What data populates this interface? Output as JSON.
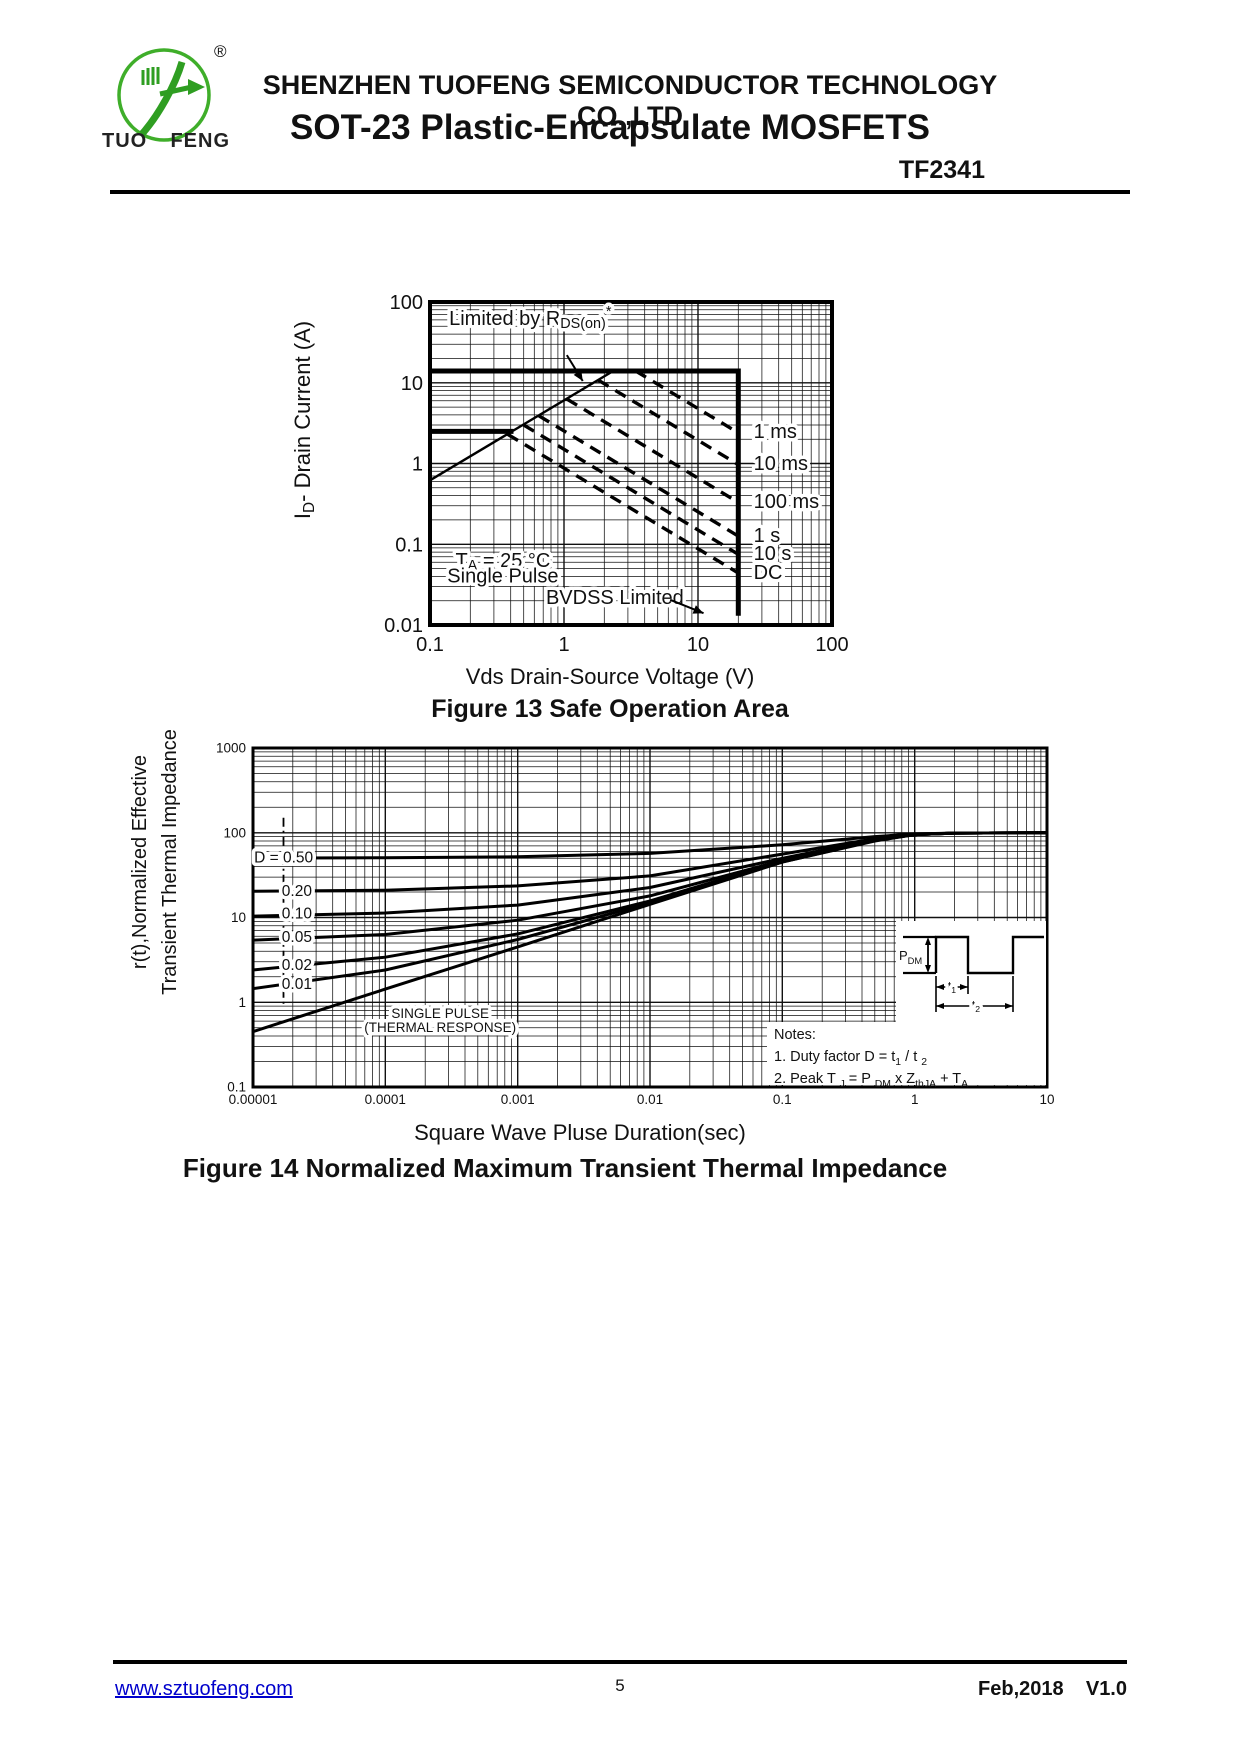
{
  "header": {
    "registered": "®",
    "logo_word1": "TUO",
    "logo_word2": "FENG",
    "company": "SHENZHEN TUOFENG SEMICONDUCTOR TECHNOLOGY CO.,LTD",
    "title": "SOT-23 Plastic-Encapsulate MOSFETS",
    "part_number": "TF2341",
    "logo_green": "#3fae2a"
  },
  "chart_data": [
    {
      "type": "line",
      "title": "Figure 13 Safe Operation Area",
      "xlabel": "Vds Drain-Source Voltage (V)",
      "ylabel": "ID- Drain Current (A)",
      "ylabel_parts": [
        {
          "t": "I"
        },
        {
          "t": "D",
          "sub": true
        },
        {
          "t": "- Drain Current (A)"
        }
      ],
      "xlim": [
        0.1,
        100
      ],
      "ylim": [
        0.01,
        100
      ],
      "grid": true,
      "x_ticks": [
        [
          "0.1",
          0.1
        ],
        [
          "1",
          1
        ],
        [
          "10",
          10
        ],
        [
          "100",
          100
        ]
      ],
      "y_ticks": [
        [
          "100",
          100
        ],
        [
          "10",
          10
        ],
        [
          "1",
          1
        ],
        [
          "0.1",
          0.1
        ],
        [
          "0.01",
          0.01
        ]
      ],
      "series": [
        {
          "name": "max-current-and-bvdss-boundary",
          "style": "thick",
          "points": [
            [
              0.1,
              14
            ],
            [
              20,
              14
            ],
            [
              20,
              0.013
            ]
          ]
        },
        {
          "name": "pulsed-current-limit",
          "style": "thick",
          "points": [
            [
              0.1,
              2.5
            ],
            [
              0.42,
              2.5
            ]
          ]
        },
        {
          "name": "rdson-limit-line",
          "style": "solid",
          "points": [
            [
              0.1,
              0.62
            ],
            [
              2.33,
              14
            ]
          ]
        },
        {
          "name": "soa-1ms",
          "style": "dashed",
          "points": [
            [
              3.43,
              14
            ],
            [
              20,
              2.4
            ]
          ]
        },
        {
          "name": "soa-10ms",
          "style": "dashed",
          "points": [
            [
              1.8,
              10.8
            ],
            [
              20,
              0.97
            ]
          ]
        },
        {
          "name": "soa-100ms",
          "style": "dashed",
          "points": [
            [
              1.05,
              6.3
            ],
            [
              20,
              0.33
            ]
          ]
        },
        {
          "name": "soa-1s",
          "style": "dashed",
          "points": [
            [
              0.65,
              3.9
            ],
            [
              20,
              0.126
            ]
          ]
        },
        {
          "name": "soa-10s",
          "style": "dashed",
          "points": [
            [
              0.5,
              3.0
            ],
            [
              20,
              0.075
            ]
          ]
        },
        {
          "name": "soa-dc",
          "style": "dashed",
          "points": [
            [
              0.38,
              2.3
            ],
            [
              20,
              0.044
            ]
          ]
        }
      ],
      "labels": [
        {
          "name": "label-limited-by-rdson",
          "x": 0.56,
          "y": 60,
          "anchor": "middle",
          "size": 20,
          "knock": true,
          "parts": [
            {
              "t": "Limited by R"
            },
            {
              "t": "DS(on)",
              "sub": true
            },
            {
              "t": "*",
              "sup": true
            }
          ]
        },
        {
          "name": "label-ta-25c",
          "x": 0.35,
          "y": 0.06,
          "anchor": "middle",
          "size": 20,
          "knock": true,
          "parts": [
            {
              "t": "T"
            },
            {
              "t": "A",
              "sub": true
            },
            {
              "t": " = 25 °C"
            }
          ]
        },
        {
          "name": "label-single-pulse",
          "x": 0.35,
          "y": 0.039,
          "anchor": "middle",
          "size": 20,
          "knock": true,
          "parts": [
            {
              "t": "Single Pulse"
            }
          ]
        },
        {
          "name": "label-bvdss-limited",
          "x": 2.4,
          "y": 0.021,
          "anchor": "middle",
          "size": 20,
          "knock": true,
          "parts": [
            {
              "t": "BVDSS Limited"
            }
          ]
        },
        {
          "name": "label-1ms",
          "x": 26,
          "y": 2.4,
          "anchor": "start",
          "size": 20,
          "knock": true,
          "parts": [
            {
              "t": "1 ms"
            }
          ]
        },
        {
          "name": "label-10ms",
          "x": 26,
          "y": 0.96,
          "anchor": "start",
          "size": 20,
          "knock": true,
          "parts": [
            {
              "t": "10 ms"
            }
          ]
        },
        {
          "name": "label-100ms",
          "x": 26,
          "y": 0.324,
          "anchor": "start",
          "size": 20,
          "knock": true,
          "parts": [
            {
              "t": "100 ms"
            }
          ]
        },
        {
          "name": "label-1s",
          "x": 26,
          "y": 0.123,
          "anchor": "start",
          "size": 20,
          "knock": true,
          "parts": [
            {
              "t": "1 s"
            }
          ]
        },
        {
          "name": "label-10s",
          "x": 26,
          "y": 0.074,
          "anchor": "start",
          "size": 20,
          "knock": true,
          "parts": [
            {
              "t": "10 s"
            }
          ]
        },
        {
          "name": "label-dc",
          "x": 26,
          "y": 0.043,
          "anchor": "start",
          "size": 20,
          "knock": true,
          "parts": [
            {
              "t": "DC"
            }
          ]
        }
      ],
      "arrows": [
        {
          "name": "arrow-to-rdson-line",
          "from": [
            1.05,
            22
          ],
          "to": [
            1.38,
            10.5
          ]
        },
        {
          "name": "arrow-to-bvdss-line",
          "from": [
            6.2,
            0.0205
          ],
          "to": [
            11,
            0.014
          ]
        }
      ]
    },
    {
      "type": "line",
      "title": "Figure 14 Normalized Maximum Transient Thermal Impedance",
      "xlabel": "Square Wave Pluse Duration(sec)",
      "ylabel_line1": "r(t),Normalized Effective",
      "ylabel_line2": "Transient Thermal Impedance",
      "xlim": [
        1e-05,
        10
      ],
      "ylim": [
        0.1,
        1000
      ],
      "grid": true,
      "x_ticks": [
        [
          "0.00001",
          1e-05
        ],
        [
          "0.0001",
          0.0001
        ],
        [
          "0.001",
          0.001
        ],
        [
          "0.01",
          0.01
        ],
        [
          "0.1",
          0.1
        ],
        [
          "1",
          1
        ],
        [
          "10",
          10
        ]
      ],
      "y_ticks": [
        [
          "1000",
          1000
        ],
        [
          "100",
          100
        ],
        [
          "10",
          10
        ],
        [
          "1",
          1
        ],
        [
          "0.1",
          0.1
        ]
      ],
      "series": [
        {
          "name": "duty-0-50",
          "style": "curve",
          "points": [
            [
              1e-05,
              50.2
            ],
            [
              0.0001,
              50.7
            ],
            [
              0.001,
              52
            ],
            [
              0.01,
              57
            ],
            [
              0.1,
              72
            ],
            [
              0.5,
              90
            ],
            [
              1,
              97
            ],
            [
              2,
              99
            ],
            [
              10,
              100
            ]
          ]
        },
        {
          "name": "duty-0-20",
          "style": "curve",
          "points": [
            [
              1e-05,
              20.4
            ],
            [
              0.0001,
              21
            ],
            [
              0.001,
              23.6
            ],
            [
              0.01,
              31
            ],
            [
              0.1,
              56
            ],
            [
              0.5,
              85
            ],
            [
              1,
              96
            ],
            [
              2,
              99
            ],
            [
              10,
              100
            ]
          ]
        },
        {
          "name": "duty-0-10",
          "style": "curve",
          "points": [
            [
              1e-05,
              10.4
            ],
            [
              0.0001,
              11.3
            ],
            [
              0.001,
              14
            ],
            [
              0.01,
              22.6
            ],
            [
              0.1,
              50
            ],
            [
              0.5,
              83
            ],
            [
              1,
              95
            ],
            [
              2,
              99
            ],
            [
              10,
              100
            ]
          ]
        },
        {
          "name": "duty-0-05",
          "style": "curve",
          "points": [
            [
              1e-05,
              5.4
            ],
            [
              0.0001,
              6.3
            ],
            [
              0.001,
              9.3
            ],
            [
              0.01,
              18
            ],
            [
              0.1,
              47
            ],
            [
              0.5,
              82
            ],
            [
              1,
              95
            ],
            [
              2,
              99
            ],
            [
              10,
              100
            ]
          ]
        },
        {
          "name": "duty-0-02",
          "style": "curve",
          "points": [
            [
              1e-05,
              2.4
            ],
            [
              0.0001,
              3.4
            ],
            [
              0.001,
              6.4
            ],
            [
              0.01,
              15.7
            ],
            [
              0.1,
              46
            ],
            [
              0.5,
              81
            ],
            [
              1,
              95
            ],
            [
              2,
              99
            ],
            [
              10,
              100
            ]
          ]
        },
        {
          "name": "duty-0-01",
          "style": "curve",
          "points": [
            [
              1e-05,
              1.45
            ],
            [
              0.0001,
              2.4
            ],
            [
              0.001,
              5.5
            ],
            [
              0.01,
              14.9
            ],
            [
              0.1,
              45
            ],
            [
              0.5,
              81
            ],
            [
              1,
              95
            ],
            [
              2,
              99
            ],
            [
              10,
              100
            ]
          ]
        },
        {
          "name": "single-pulse-thermal-response",
          "style": "curve",
          "points": [
            [
              1e-05,
              0.45
            ],
            [
              0.0001,
              1.43
            ],
            [
              0.001,
              4.5
            ],
            [
              0.01,
              14.3
            ],
            [
              0.1,
              45
            ],
            [
              0.5,
              80
            ],
            [
              1,
              95
            ],
            [
              2,
              99
            ],
            [
              10,
              100
            ]
          ]
        },
        {
          "name": "marker-dashdot-line",
          "style": "dashdot",
          "points": [
            [
              1.7e-05,
              150
            ],
            [
              1.7e-05,
              0.95
            ]
          ]
        }
      ],
      "labels": [
        {
          "name": "label-duty-050",
          "x": 1.02e-05,
          "y": 50,
          "anchor": "start",
          "size": 15.5,
          "knock": true,
          "parts": [
            {
              "t": "D = 0.50"
            }
          ]
        },
        {
          "name": "label-duty-020",
          "x": 1.65e-05,
          "y": 20,
          "anchor": "start",
          "size": 15.5,
          "knock": true,
          "parts": [
            {
              "t": "0.20"
            }
          ]
        },
        {
          "name": "label-duty-010",
          "x": 1.65e-05,
          "y": 10.8,
          "anchor": "start",
          "size": 15.5,
          "knock": true,
          "parts": [
            {
              "t": "0.10"
            }
          ]
        },
        {
          "name": "label-duty-005",
          "x": 1.65e-05,
          "y": 5.7,
          "anchor": "start",
          "size": 15.5,
          "knock": true,
          "parts": [
            {
              "t": "0.05"
            }
          ]
        },
        {
          "name": "label-duty-002",
          "x": 1.65e-05,
          "y": 2.66,
          "anchor": "start",
          "size": 15.5,
          "knock": true,
          "parts": [
            {
              "t": "0.02"
            }
          ]
        },
        {
          "name": "label-duty-001",
          "x": 1.65e-05,
          "y": 1.6,
          "anchor": "start",
          "size": 15.5,
          "knock": true,
          "parts": [
            {
              "t": "0.01"
            }
          ]
        },
        {
          "name": "label-single-pulse-line1",
          "x": 0.00026,
          "y": 0.73,
          "anchor": "middle",
          "size": 13.5,
          "knock": true,
          "parts": [
            {
              "t": "SINGLE PULSE"
            }
          ]
        },
        {
          "name": "label-single-pulse-line2",
          "x": 0.00026,
          "y": 0.5,
          "anchor": "middle",
          "size": 13.5,
          "knock": true,
          "parts": [
            {
              "t": "(THERMAL RESPONSE)"
            }
          ]
        }
      ],
      "notes_title": "Notes:",
      "note1_parts": [
        {
          "t": "1. Duty factor D =  t"
        },
        {
          "t": "1",
          "sub": true
        },
        {
          "t": " / t "
        },
        {
          "t": "2",
          "sub": true
        }
      ],
      "note2_parts": [
        {
          "t": "2. Peak T "
        },
        {
          "t": "J",
          "sub": true
        },
        {
          "t": " = P "
        },
        {
          "t": "DM",
          "sub": true
        },
        {
          "t": " x Z"
        },
        {
          "t": "thJA",
          "sub": true
        },
        {
          "t": " + T"
        },
        {
          "t": "A",
          "sub": true
        }
      ],
      "inset": {
        "pdm_parts": [
          {
            "t": "P"
          },
          {
            "t": "DM",
            "sub": true
          }
        ],
        "t1_parts": [
          {
            "t": "t"
          },
          {
            "t": "1",
            "sub": true
          }
        ],
        "t2_parts": [
          {
            "t": "t"
          },
          {
            "t": "2",
            "sub": true
          }
        ]
      }
    }
  ],
  "footer": {
    "website": "www.sztuofeng.com",
    "page": "5",
    "date_version": "Feb,2018    V1.0"
  }
}
